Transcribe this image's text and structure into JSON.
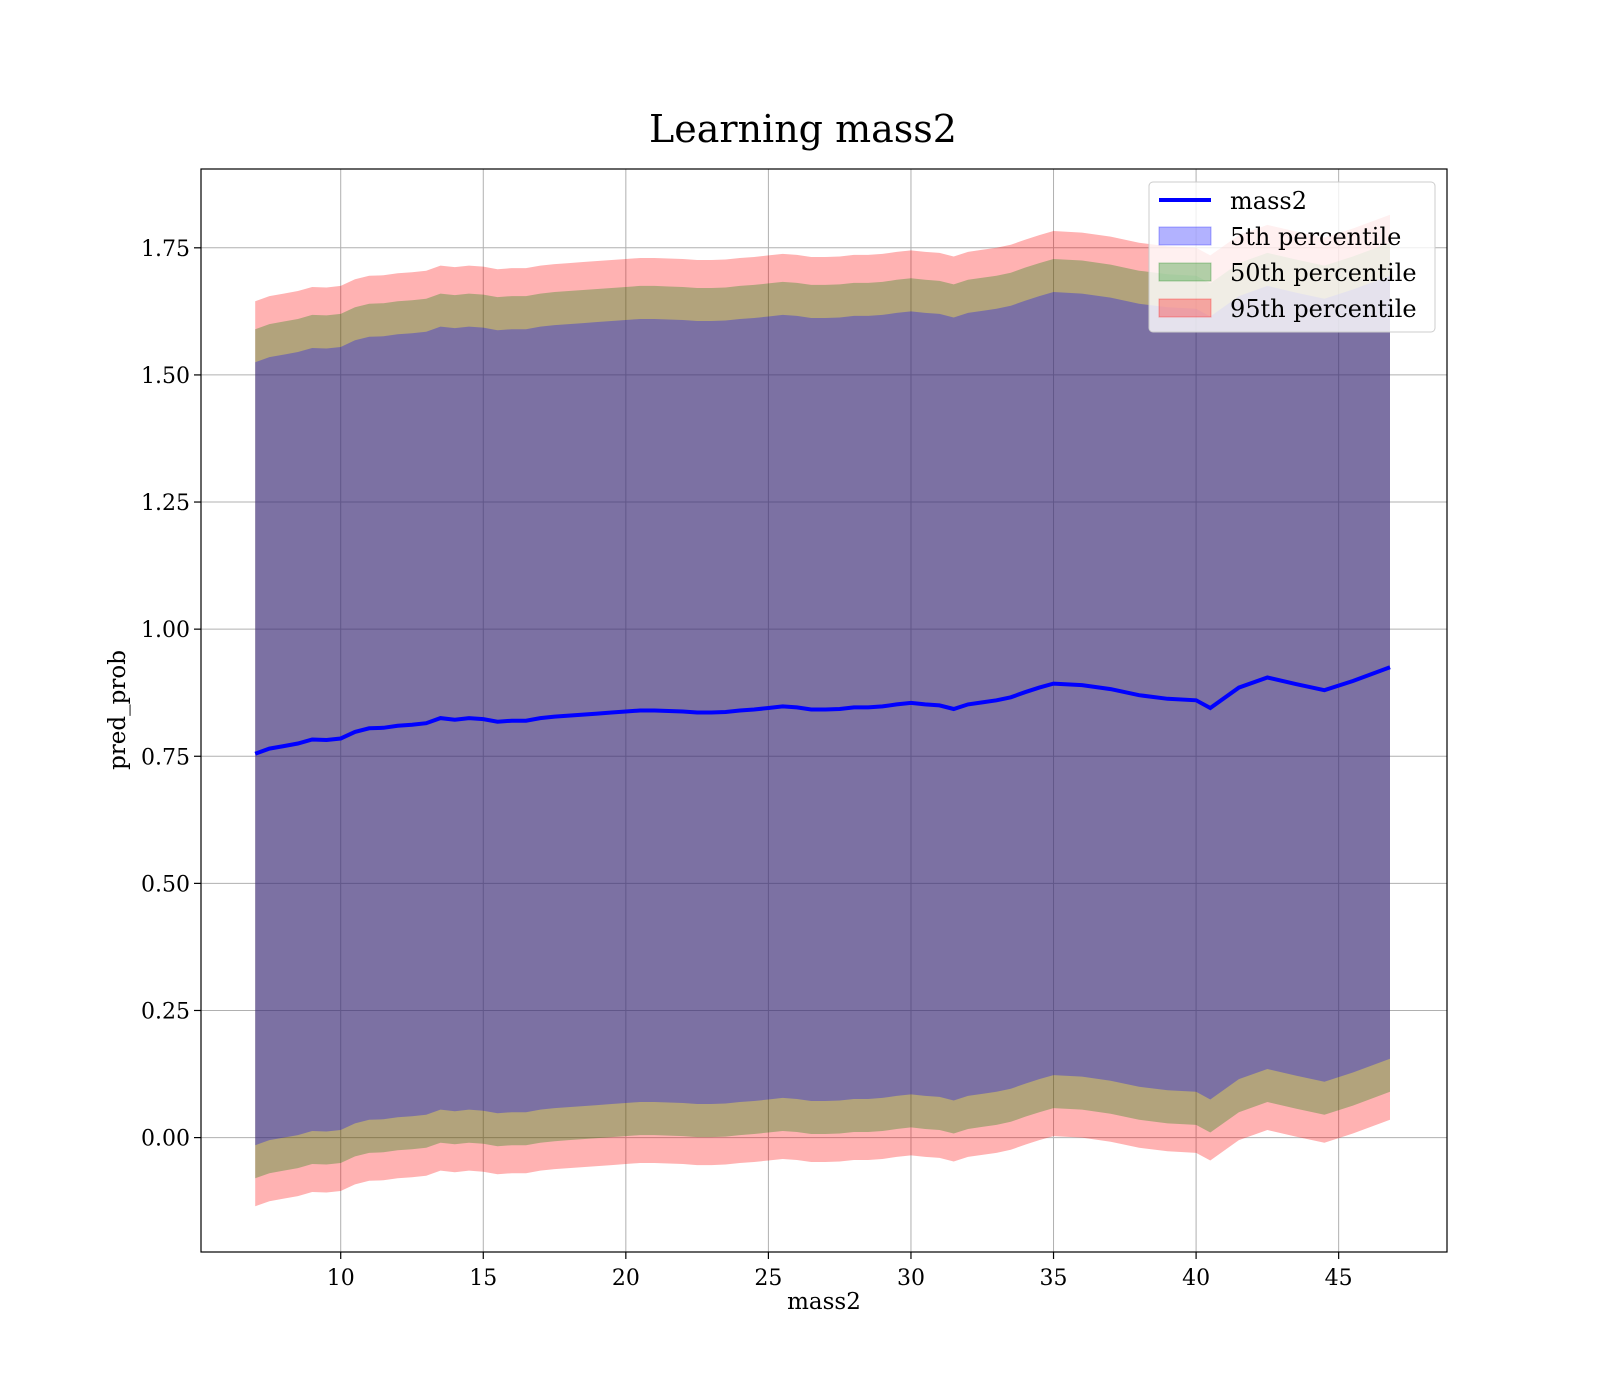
{
  "chart_data": {
    "type": "area",
    "title": "Learning mass2",
    "xlabel": "mass2",
    "ylabel": "pred_prob",
    "xlim": [
      5.1,
      48.8
    ],
    "ylim": [
      -0.225,
      1.905
    ],
    "xticks": [
      10,
      15,
      20,
      25,
      30,
      35,
      40,
      45
    ],
    "yticks": [
      0.0,
      0.25,
      0.5,
      0.75,
      1.0,
      1.25,
      1.5,
      1.75
    ],
    "xtick_labels": [
      "10",
      "15",
      "20",
      "25",
      "30",
      "35",
      "40",
      "45"
    ],
    "ytick_labels": [
      "0.00",
      "0.25",
      "0.50",
      "0.75",
      "1.00",
      "1.25",
      "1.50",
      "1.75"
    ],
    "grid": true,
    "legend_position": "top-right",
    "x": [
      7.0,
      7.5,
      8.0,
      8.5,
      9.0,
      9.5,
      10.0,
      10.5,
      11.0,
      11.5,
      12.0,
      12.5,
      13.0,
      13.5,
      14.0,
      14.5,
      15.0,
      15.5,
      16.0,
      16.5,
      17.0,
      17.5,
      18.0,
      18.5,
      19.0,
      19.5,
      20.0,
      20.5,
      21.0,
      21.5,
      22.0,
      22.5,
      23.0,
      23.5,
      24.0,
      24.5,
      25.0,
      25.5,
      26.0,
      26.5,
      27.0,
      27.5,
      28.0,
      28.5,
      29.0,
      29.5,
      30.0,
      30.5,
      31.0,
      31.5,
      32.0,
      32.5,
      33.0,
      33.5,
      34.0,
      34.5,
      35.0,
      36.0,
      37.0,
      38.0,
      39.0,
      40.0,
      40.5,
      41.5,
      42.5,
      43.5,
      44.5,
      45.5,
      46.8
    ],
    "mean": [
      0.755,
      0.765,
      0.77,
      0.775,
      0.783,
      0.782,
      0.785,
      0.798,
      0.805,
      0.806,
      0.81,
      0.812,
      0.815,
      0.825,
      0.822,
      0.825,
      0.823,
      0.818,
      0.82,
      0.82,
      0.825,
      0.828,
      0.83,
      0.832,
      0.834,
      0.836,
      0.838,
      0.84,
      0.84,
      0.839,
      0.838,
      0.836,
      0.836,
      0.837,
      0.84,
      0.842,
      0.845,
      0.848,
      0.846,
      0.842,
      0.842,
      0.843,
      0.846,
      0.846,
      0.848,
      0.852,
      0.855,
      0.852,
      0.85,
      0.843,
      0.852,
      0.856,
      0.86,
      0.866,
      0.876,
      0.885,
      0.893,
      0.89,
      0.882,
      0.87,
      0.863,
      0.86,
      0.845,
      0.885,
      0.905,
      0.892,
      0.88,
      0.898,
      0.925
    ],
    "series": [
      {
        "name": "mass2",
        "values": [
          0.755,
          0.765,
          0.77,
          0.775,
          0.783,
          0.782,
          0.785,
          0.798,
          0.805,
          0.806,
          0.81,
          0.812,
          0.815,
          0.825,
          0.822,
          0.825,
          0.823,
          0.818,
          0.82,
          0.82,
          0.825,
          0.828,
          0.83,
          0.832,
          0.834,
          0.836,
          0.838,
          0.84,
          0.84,
          0.839,
          0.838,
          0.836,
          0.836,
          0.837,
          0.84,
          0.842,
          0.845,
          0.848,
          0.846,
          0.842,
          0.842,
          0.843,
          0.846,
          0.846,
          0.848,
          0.852,
          0.855,
          0.852,
          0.85,
          0.843,
          0.852,
          0.856,
          0.86,
          0.866,
          0.876,
          0.885,
          0.893,
          0.89,
          0.882,
          0.87,
          0.863,
          0.86,
          0.845,
          0.885,
          0.905,
          0.892,
          0.88,
          0.898,
          0.925
        ],
        "color": "#0000ff"
      },
      {
        "name": "5th percentile",
        "color": "#0000ff",
        "opacity": 0.3,
        "half_width": 0.77
      },
      {
        "name": "50th percentile",
        "color": "#008000",
        "opacity": 0.3,
        "half_width": 0.835
      },
      {
        "name": "95th percentile",
        "color": "#ff0000",
        "opacity": 0.3,
        "half_width": 0.89
      }
    ]
  }
}
